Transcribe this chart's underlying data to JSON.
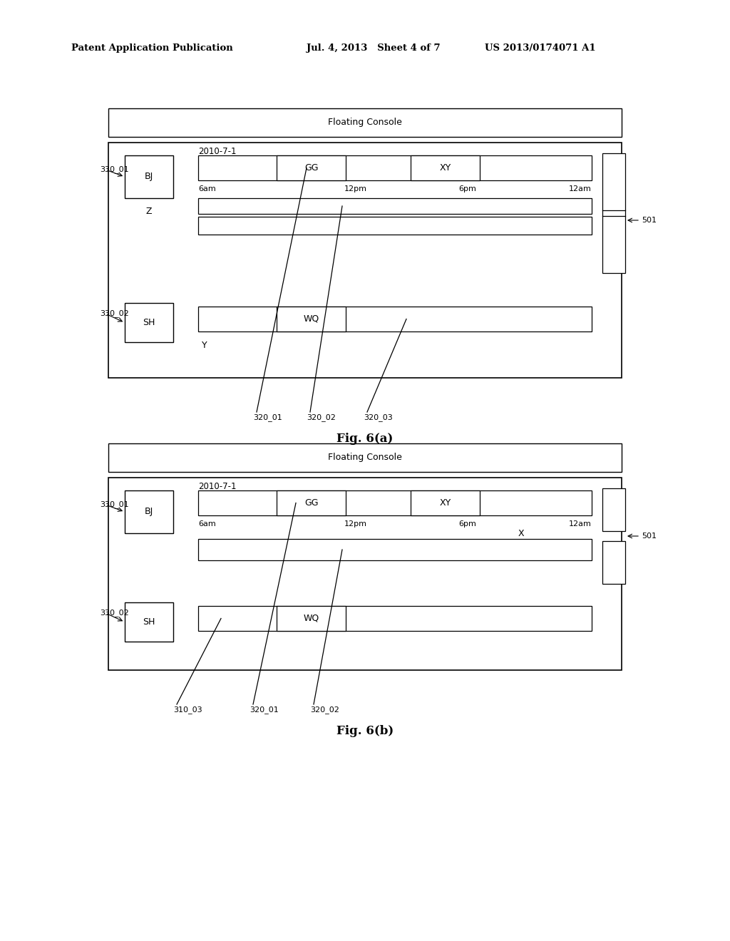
{
  "bg_color": "#ffffff",
  "header_text_left": "Patent Application Publication",
  "header_text_mid": "Jul. 4, 2013   Sheet 4 of 7",
  "header_text_right": "US 2013/0174071 A1",
  "fig6a_title": "Fig. 6(a)",
  "fig6b_title": "Fig. 6(b)",
  "floating_console_text": "Floating Console",
  "date_text": "2010-7-1",
  "bj_text": "BJ",
  "sh_text": "SH",
  "gg_text": "GG",
  "xy_text": "XY",
  "wq_text": "WQ",
  "z_text": "Z",
  "y_text": "Y",
  "x_text": "X",
  "time_labels": [
    "6am",
    "12pm",
    "6pm",
    "12am"
  ],
  "label_330_01": "330_01",
  "label_330_02": "330_02",
  "label_320_01a": "320_01",
  "label_320_02a": "320_02",
  "label_320_03a": "320_03",
  "label_310_03": "310_03",
  "label_320_01b": "320_01",
  "label_320_02b": "320_02",
  "label_501": "501",
  "font_size_header": 9.5,
  "font_size_label": 8,
  "font_size_box": 9,
  "font_size_fig": 12,
  "font_size_time": 8
}
